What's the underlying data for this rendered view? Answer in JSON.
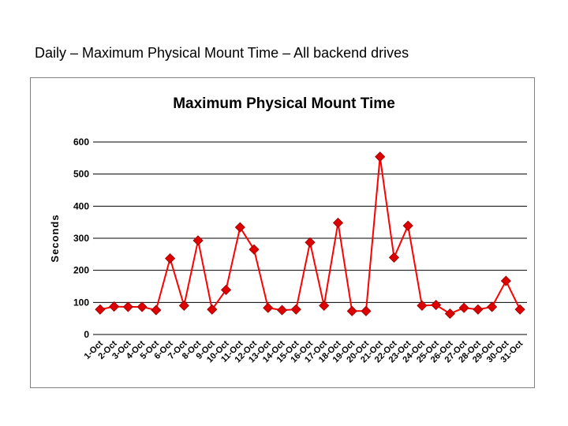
{
  "page": {
    "title": "Daily – Maximum Physical Mount Time – All backend drives"
  },
  "colors": {
    "series": "#ff0000",
    "marker": "#dd0000",
    "gridline": "#000000"
  },
  "chart_data": {
    "type": "line",
    "title": "Maximum Physical Mount Time",
    "xlabel": "",
    "ylabel": "Seconds",
    "ylim": [
      0,
      600
    ],
    "yticks": [
      0,
      100,
      200,
      300,
      400,
      500,
      600
    ],
    "grid": true,
    "legend": "none",
    "categories": [
      "1-Oct",
      "2-Oct",
      "3-Oct",
      "4-Oct",
      "5-Oct",
      "6-Oct",
      "7-Oct",
      "8-Oct",
      "9-Oct",
      "10-Oct",
      "11-Oct",
      "12-Oct",
      "13-Oct",
      "14-Oct",
      "15-Oct",
      "16-Oct",
      "17-Oct",
      "18-Oct",
      "19-Oct",
      "20-Oct",
      "21-Oct",
      "22-Oct",
      "23-Oct",
      "24-Oct",
      "25-Oct",
      "26-Oct",
      "27-Oct",
      "28-Oct",
      "29-Oct",
      "30-Oct",
      "31-Oct"
    ],
    "series": [
      {
        "values": [
          78,
          87,
          86,
          86,
          76,
          237,
          90,
          293,
          78,
          139,
          334,
          265,
          83,
          76,
          78,
          287,
          90,
          348,
          73,
          73,
          554,
          240,
          339,
          90,
          92,
          65,
          83,
          78,
          86,
          167,
          78
        ]
      }
    ]
  }
}
